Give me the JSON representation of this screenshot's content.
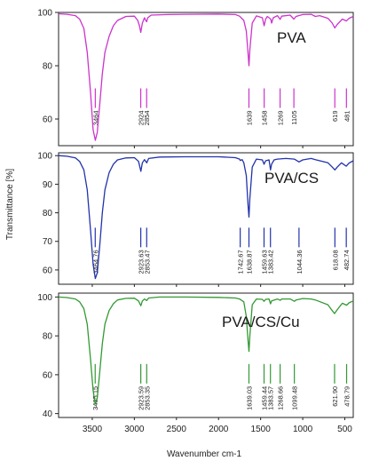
{
  "chart_data": {
    "type": "line",
    "title": "",
    "xlabel": "Wavenumber cm-1",
    "ylabel": "Transmittance [%]",
    "xlim": [
      3900,
      400
    ],
    "x_reversed": true,
    "x_ticks": [
      3500,
      3000,
      2500,
      2000,
      1500,
      1000,
      500
    ],
    "grid": false,
    "legend": "none",
    "panels": [
      {
        "name": "PVA",
        "color": "#cc33cc",
        "ylim": [
          50,
          100
        ],
        "y_ticks": [
          60,
          80,
          100
        ],
        "points": [
          [
            3900,
            99.5
          ],
          [
            3800,
            99.3
          ],
          [
            3700,
            98.8
          ],
          [
            3650,
            97.5
          ],
          [
            3600,
            94
          ],
          [
            3560,
            85
          ],
          [
            3520,
            70
          ],
          [
            3490,
            56
          ],
          [
            3464,
            52
          ],
          [
            3440,
            55
          ],
          [
            3410,
            66
          ],
          [
            3380,
            77
          ],
          [
            3350,
            85
          ],
          [
            3300,
            91
          ],
          [
            3250,
            95
          ],
          [
            3200,
            97
          ],
          [
            3100,
            98.5
          ],
          [
            3000,
            98.6
          ],
          [
            2960,
            97
          ],
          [
            2940,
            95
          ],
          [
            2924,
            92.5
          ],
          [
            2905,
            96
          ],
          [
            2880,
            98
          ],
          [
            2865,
            97
          ],
          [
            2854,
            96.5
          ],
          [
            2840,
            98
          ],
          [
            2800,
            99
          ],
          [
            2600,
            99.2
          ],
          [
            2400,
            99.3
          ],
          [
            2000,
            99.4
          ],
          [
            1800,
            99.2
          ],
          [
            1750,
            98.6
          ],
          [
            1700,
            97
          ],
          [
            1670,
            93
          ],
          [
            1650,
            85
          ],
          [
            1639,
            80
          ],
          [
            1628,
            86
          ],
          [
            1600,
            96
          ],
          [
            1550,
            98.7
          ],
          [
            1480,
            98
          ],
          [
            1458,
            95
          ],
          [
            1440,
            97.5
          ],
          [
            1420,
            98.5
          ],
          [
            1380,
            97.5
          ],
          [
            1370,
            96
          ],
          [
            1350,
            98
          ],
          [
            1300,
            98.8
          ],
          [
            1269,
            97.4
          ],
          [
            1250,
            98.6
          ],
          [
            1150,
            99
          ],
          [
            1105,
            97.5
          ],
          [
            1080,
            98.5
          ],
          [
            1000,
            99.2
          ],
          [
            900,
            99.3
          ],
          [
            850,
            98.5
          ],
          [
            800,
            98.8
          ],
          [
            700,
            97.8
          ],
          [
            650,
            96
          ],
          [
            619,
            94.2
          ],
          [
            590,
            95.5
          ],
          [
            530,
            97.5
          ],
          [
            481,
            96.8
          ],
          [
            450,
            97.8
          ],
          [
            400,
            98.5
          ]
        ],
        "peaks": [
          {
            "x": 3464,
            "label": "3464"
          },
          {
            "x": 2924,
            "label": "2924"
          },
          {
            "x": 2854,
            "label": "2854"
          },
          {
            "x": 1639,
            "label": "1639"
          },
          {
            "x": 1458,
            "label": "1458"
          },
          {
            "x": 1269,
            "label": "1269"
          },
          {
            "x": 1105,
            "label": "1105"
          },
          {
            "x": 619,
            "label": "619"
          },
          {
            "x": 481,
            "label": "481"
          }
        ]
      },
      {
        "name": "PVA/CS",
        "color": "#2233aa",
        "ylim": [
          55,
          101
        ],
        "y_ticks": [
          60,
          70,
          80,
          90,
          100
        ],
        "points": [
          [
            3900,
            100
          ],
          [
            3800,
            99.8
          ],
          [
            3700,
            99.2
          ],
          [
            3650,
            98
          ],
          [
            3600,
            95
          ],
          [
            3560,
            88
          ],
          [
            3520,
            74
          ],
          [
            3490,
            62
          ],
          [
            3464,
            57
          ],
          [
            3440,
            59
          ],
          [
            3410,
            69
          ],
          [
            3380,
            80
          ],
          [
            3350,
            88
          ],
          [
            3300,
            94
          ],
          [
            3250,
            97
          ],
          [
            3200,
            98.5
          ],
          [
            3100,
            99.2
          ],
          [
            3000,
            99.3
          ],
          [
            2950,
            98
          ],
          [
            2923,
            94.5
          ],
          [
            2905,
            97.5
          ],
          [
            2880,
            98.6
          ],
          [
            2853,
            97.5
          ],
          [
            2830,
            99
          ],
          [
            2700,
            99.5
          ],
          [
            2400,
            99.6
          ],
          [
            2000,
            99.6
          ],
          [
            1800,
            99.3
          ],
          [
            1750,
            98.8
          ],
          [
            1742,
            98.3
          ],
          [
            1720,
            98.6
          ],
          [
            1700,
            97.5
          ],
          [
            1670,
            93
          ],
          [
            1650,
            83
          ],
          [
            1639,
            78.5
          ],
          [
            1628,
            85
          ],
          [
            1600,
            96
          ],
          [
            1550,
            98.8
          ],
          [
            1480,
            98.5
          ],
          [
            1459,
            97
          ],
          [
            1440,
            98.2
          ],
          [
            1400,
            98.5
          ],
          [
            1383,
            95
          ],
          [
            1370,
            97
          ],
          [
            1340,
            98.5
          ],
          [
            1300,
            98.8
          ],
          [
            1200,
            99
          ],
          [
            1100,
            98.8
          ],
          [
            1044,
            97.8
          ],
          [
            1000,
            98.5
          ],
          [
            900,
            99
          ],
          [
            850,
            98.6
          ],
          [
            700,
            97.5
          ],
          [
            650,
            96
          ],
          [
            618,
            95
          ],
          [
            590,
            96
          ],
          [
            540,
            97.5
          ],
          [
            483,
            96.3
          ],
          [
            450,
            97.4
          ],
          [
            400,
            98.2
          ]
        ],
        "peaks": [
          {
            "x": 3464.76,
            "label": "3464.76"
          },
          {
            "x": 2923.63,
            "label": "2923.63"
          },
          {
            "x": 2853.47,
            "label": "2853.47"
          },
          {
            "x": 1742.67,
            "label": "1742.67"
          },
          {
            "x": 1638.87,
            "label": "1638.87"
          },
          {
            "x": 1459.63,
            "label": "1459.63"
          },
          {
            "x": 1383.42,
            "label": "1383.42"
          },
          {
            "x": 1044.36,
            "label": "1044.36"
          },
          {
            "x": 618.08,
            "label": "618.08"
          },
          {
            "x": 482.74,
            "label": "482.74"
          }
        ]
      },
      {
        "name": "PVA/CS/Cu",
        "color": "#339933",
        "ylim": [
          38,
          102
        ],
        "y_ticks": [
          40,
          60,
          80,
          100
        ],
        "points": [
          [
            3900,
            100
          ],
          [
            3800,
            99.7
          ],
          [
            3700,
            99
          ],
          [
            3650,
            97.5
          ],
          [
            3600,
            94
          ],
          [
            3560,
            86
          ],
          [
            3520,
            68
          ],
          [
            3490,
            52
          ],
          [
            3465,
            45
          ],
          [
            3440,
            48
          ],
          [
            3410,
            62
          ],
          [
            3380,
            76
          ],
          [
            3350,
            86
          ],
          [
            3300,
            93
          ],
          [
            3250,
            96.5
          ],
          [
            3200,
            98.5
          ],
          [
            3100,
            99.3
          ],
          [
            3000,
            99.4
          ],
          [
            2950,
            98
          ],
          [
            2923,
            95.5
          ],
          [
            2905,
            98
          ],
          [
            2880,
            99
          ],
          [
            2853,
            98.2
          ],
          [
            2830,
            99.5
          ],
          [
            2700,
            100
          ],
          [
            2400,
            100
          ],
          [
            2000,
            99.8
          ],
          [
            1800,
            99.5
          ],
          [
            1750,
            99
          ],
          [
            1700,
            97.5
          ],
          [
            1670,
            90
          ],
          [
            1650,
            78
          ],
          [
            1639,
            72
          ],
          [
            1628,
            80
          ],
          [
            1600,
            96
          ],
          [
            1550,
            99
          ],
          [
            1480,
            98.8
          ],
          [
            1459,
            97.8
          ],
          [
            1440,
            98.8
          ],
          [
            1400,
            99
          ],
          [
            1383,
            96.5
          ],
          [
            1370,
            98
          ],
          [
            1300,
            99
          ],
          [
            1268,
            98.3
          ],
          [
            1250,
            99
          ],
          [
            1150,
            99
          ],
          [
            1099,
            97.8
          ],
          [
            1080,
            98.5
          ],
          [
            1000,
            99.2
          ],
          [
            900,
            99
          ],
          [
            850,
            98.5
          ],
          [
            700,
            96
          ],
          [
            650,
            93
          ],
          [
            622,
            91.5
          ],
          [
            590,
            93.5
          ],
          [
            530,
            96.8
          ],
          [
            479,
            95.8
          ],
          [
            450,
            97
          ],
          [
            400,
            98
          ]
        ],
        "peaks": [
          {
            "x": 3465.15,
            "label": "3465.15"
          },
          {
            "x": 2923.59,
            "label": "2923.59"
          },
          {
            "x": 2853.35,
            "label": "2853.35"
          },
          {
            "x": 1639.03,
            "label": "1639.03"
          },
          {
            "x": 1459.44,
            "label": "1459.44"
          },
          {
            "x": 1383.57,
            "label": "1383.57"
          },
          {
            "x": 1268.66,
            "label": "1268.66"
          },
          {
            "x": 1099.48,
            "label": "1099.48"
          },
          {
            "x": 621.9,
            "label": "621.90"
          },
          {
            "x": 478.79,
            "label": "478.79"
          }
        ]
      }
    ]
  }
}
